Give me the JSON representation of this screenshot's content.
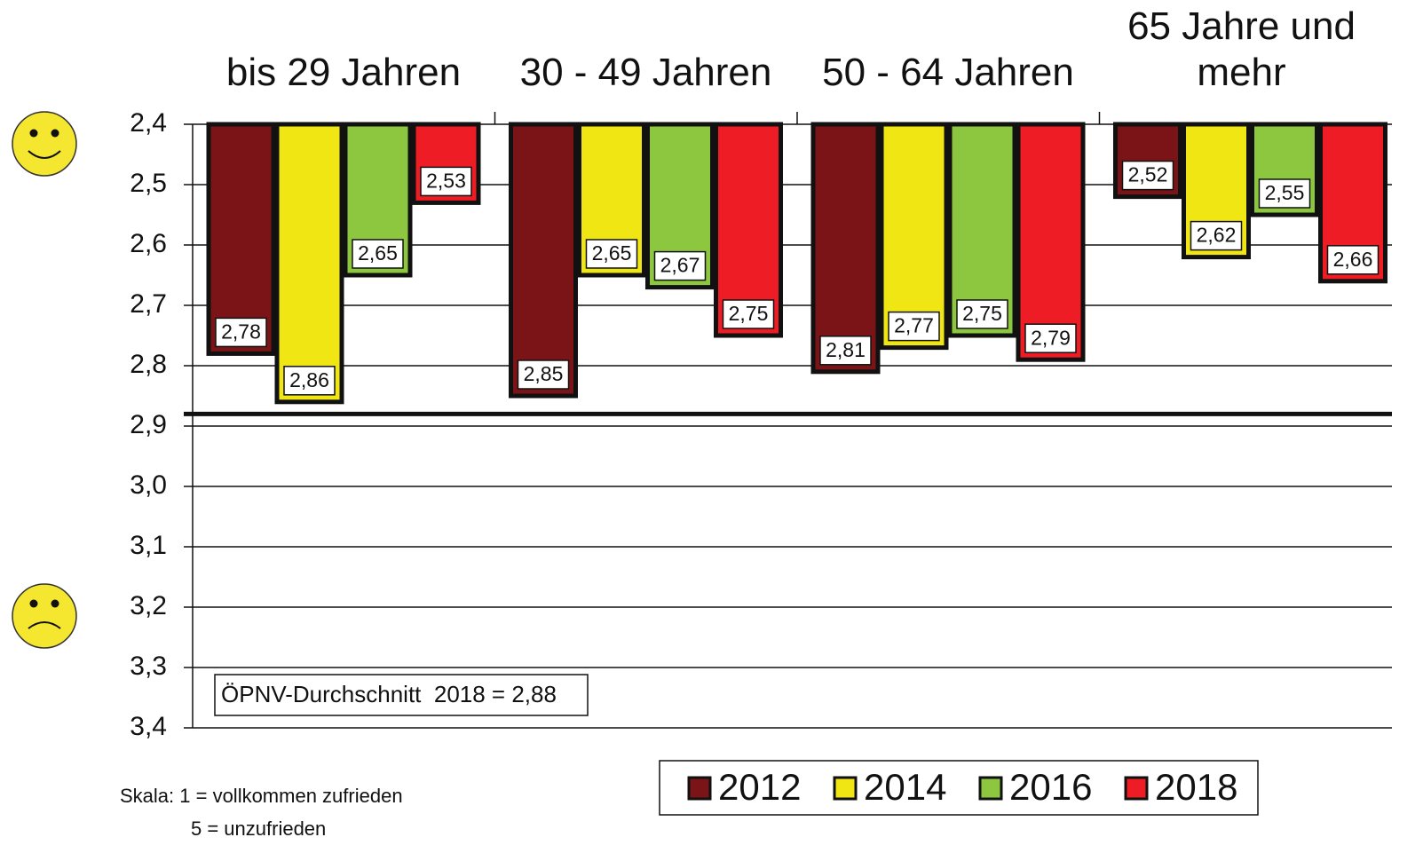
{
  "chart_data": {
    "type": "bar",
    "y_inverted": true,
    "categories": [
      "bis 29 Jahren",
      "30 - 49 Jahren",
      "50 - 64 Jahren",
      "65 Jahre und mehr"
    ],
    "series": [
      {
        "name": "2012",
        "color": "#7b1416",
        "values": [
          2.78,
          2.85,
          2.81,
          2.52
        ],
        "value_labels": [
          "2,78",
          "2,85",
          "2,81",
          "2,52"
        ]
      },
      {
        "name": "2014",
        "color": "#f0e614",
        "values": [
          2.86,
          2.65,
          2.77,
          2.62
        ],
        "value_labels": [
          "2,86",
          "2,65",
          "2,77",
          "2,62"
        ]
      },
      {
        "name": "2016",
        "color": "#8dc63f",
        "values": [
          2.65,
          2.67,
          2.75,
          2.55
        ],
        "value_labels": [
          "2,65",
          "2,67",
          "2,75",
          "2,55"
        ]
      },
      {
        "name": "2018",
        "color": "#ee1c24",
        "values": [
          2.53,
          2.75,
          2.79,
          2.66
        ],
        "value_labels": [
          "2,53",
          "2,75",
          "2,79",
          "2,66"
        ]
      }
    ],
    "ylim": [
      2.4,
      3.4
    ],
    "yticks": [
      {
        "value": 2.4,
        "label": "2,4"
      },
      {
        "value": 2.5,
        "label": "2,5"
      },
      {
        "value": 2.6,
        "label": "2,6"
      },
      {
        "value": 2.7,
        "label": "2,7"
      },
      {
        "value": 2.8,
        "label": "2,8"
      },
      {
        "value": 2.9,
        "label": "2,9"
      },
      {
        "value": 3.0,
        "label": "3,0"
      },
      {
        "value": 3.1,
        "label": "3,1"
      },
      {
        "value": 3.2,
        "label": "3,2"
      },
      {
        "value": 3.3,
        "label": "3,3"
      },
      {
        "value": 3.4,
        "label": "3,4"
      }
    ],
    "grid": true,
    "reference_line": {
      "value": 2.88,
      "label": "ÖPNV-Durchschnitt  2018 = 2,88"
    },
    "notes": [
      "Skala: 1 = vollkommen zufrieden",
      "5 = unzufrieden"
    ]
  }
}
